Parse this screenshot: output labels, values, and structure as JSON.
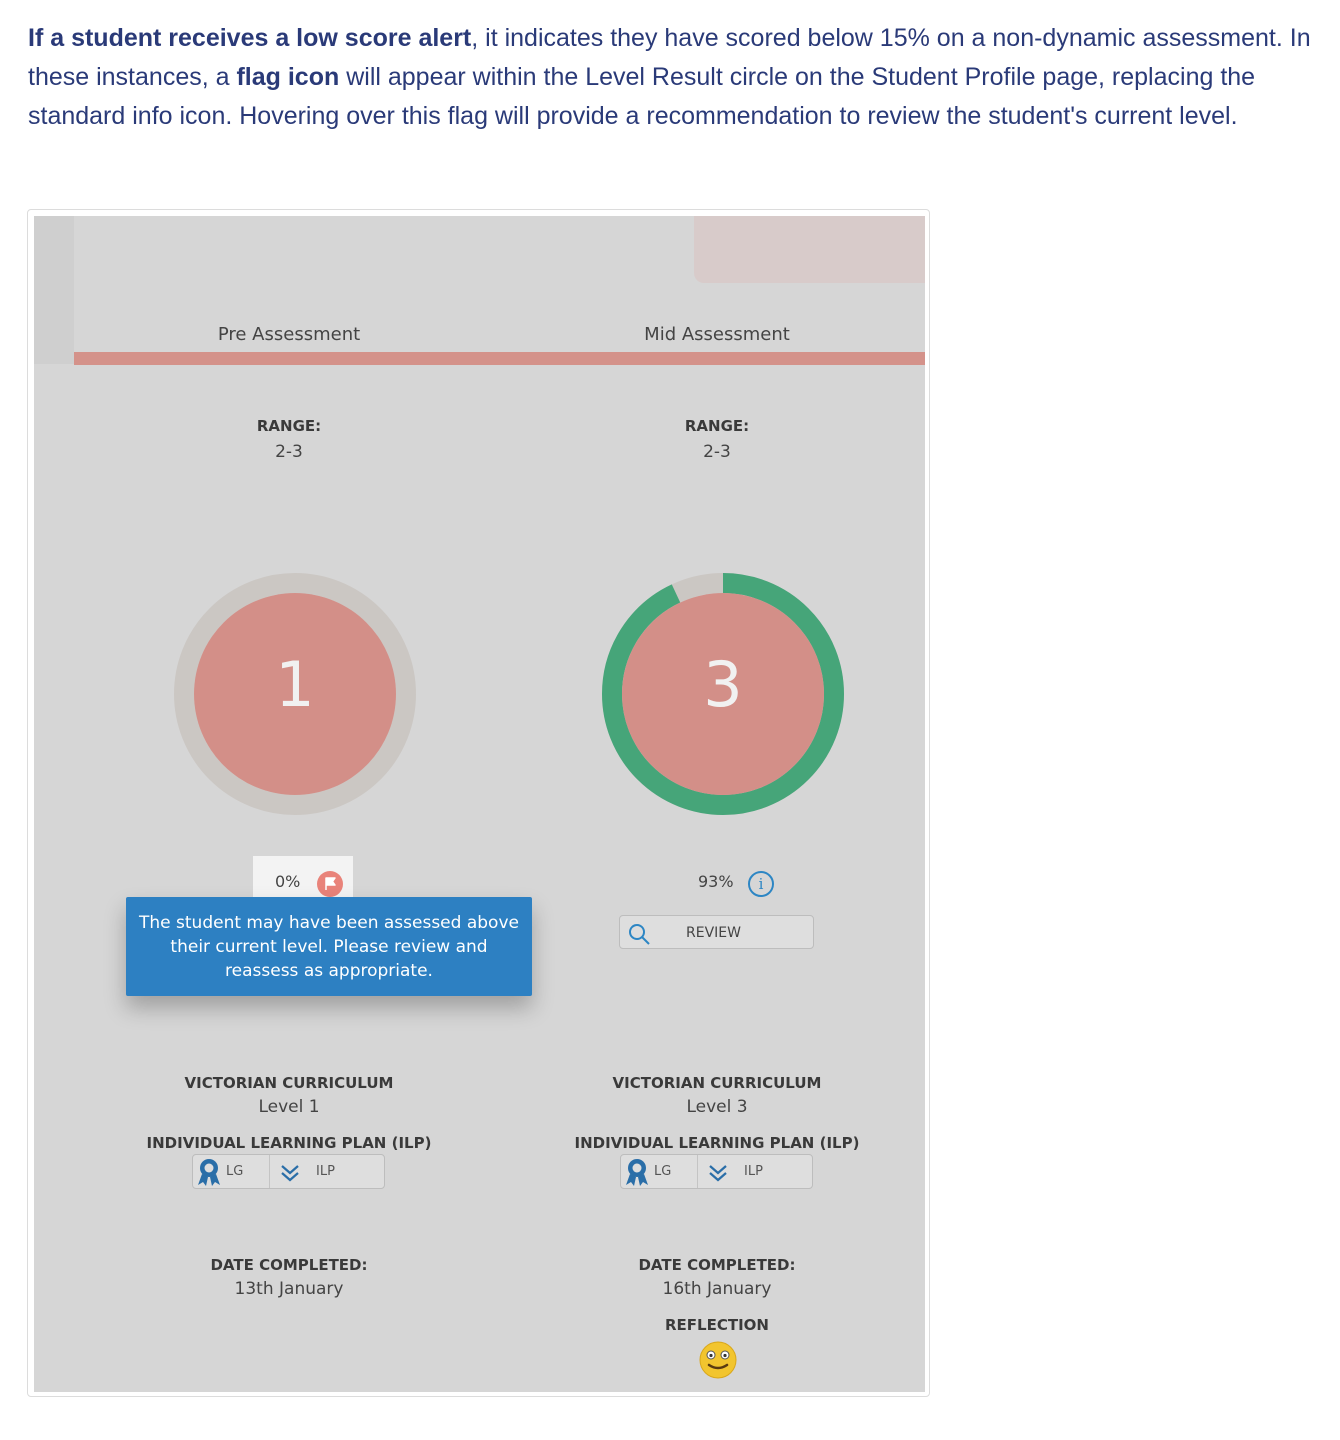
{
  "intro": {
    "bold1": "If a student receives a low score alert",
    "text1": ", it indicates they have scored below 15% on a non-dynamic assessment. In these instances, a ",
    "bold2": "flag icon",
    "text2": " will appear within the Level Result circle on the Student Profile page, replacing the standard info icon. Hovering over this flag will provide a recommendation to review the student's current level."
  },
  "columns": [
    {
      "title": "Pre Assessment",
      "range_label": "RANGE:",
      "range_value": "2-3",
      "level": "1",
      "progress": 0,
      "percent": "0%",
      "status_icon": "flag-icon",
      "curriculum_label": "VICTORIAN CURRICULUM",
      "curriculum_value": "Level 1",
      "ilp_label": "INDIVIDUAL LEARNING PLAN (ILP)",
      "lg_label": "LG",
      "ilp_button": "ILP",
      "date_label": "DATE COMPLETED:",
      "date_value": "13th January"
    },
    {
      "title": "Mid Assessment",
      "range_label": "RANGE:",
      "range_value": "2-3",
      "level": "3",
      "progress": 0.93,
      "percent": "93%",
      "status_icon": "info-icon",
      "review_button": "REVIEW",
      "curriculum_label": "VICTORIAN CURRICULUM",
      "curriculum_value": "Level 3",
      "ilp_label": "INDIVIDUAL LEARNING PLAN (ILP)",
      "lg_label": "LG",
      "ilp_button": "ILP",
      "date_label": "DATE COMPLETED:",
      "date_value": "16th January",
      "reflection_label": "REFLECTION",
      "reflection_icon": "smiley-face-icon"
    }
  ],
  "tooltip": {
    "text": "The student may have been assessed above their current level. Please review and reassess as appropriate."
  },
  "colors": {
    "accent_bar": "#d4928a",
    "circle_fill": "#d38f88",
    "ring_track": "#cbc7c3",
    "ring_progress": "#46a579",
    "tooltip_bg": "#2d80c2",
    "flag": "#e9837a",
    "info": "#2d86c4"
  }
}
